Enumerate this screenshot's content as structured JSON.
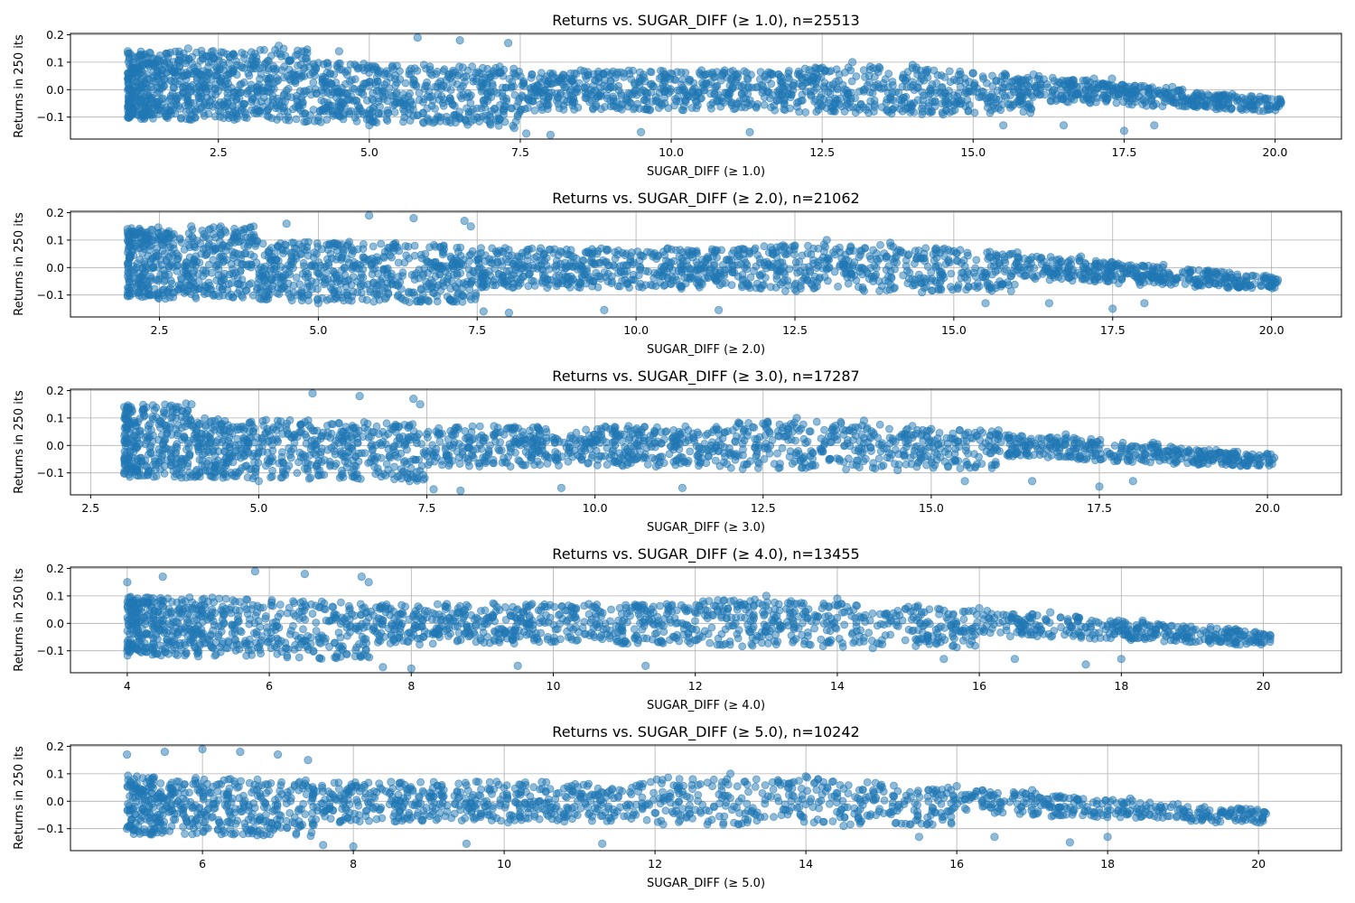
{
  "chart_data": [
    {
      "type": "scatter",
      "title": "Returns vs. SUGAR_DIFF (≥ 1.0), n=25513",
      "xlabel": "SUGAR_DIFF (≥ 1.0)",
      "ylabel": "Returns in 250 its",
      "xlim": [
        0.05,
        21.1
      ],
      "ylim": [
        -0.18,
        0.205
      ],
      "xticks": [
        2.5,
        5.0,
        7.5,
        10.0,
        12.5,
        15.0,
        17.5,
        20.0
      ],
      "xtick_labels": [
        "2.5",
        "5.0",
        "7.5",
        "10.0",
        "12.5",
        "15.0",
        "17.5",
        "20.0"
      ],
      "yticks": [
        -0.1,
        0.0,
        0.1,
        0.2
      ],
      "ytick_labels": [
        "−0.1",
        "0.0",
        "0.1",
        "0.2"
      ],
      "grid": true,
      "color": "#1f77b4",
      "series": [
        {
          "points": [
            [
              1.0,
              0.14
            ],
            [
              1.0,
              -0.1
            ],
            [
              2.0,
              0.15
            ],
            [
              3.5,
              0.16
            ],
            [
              4.5,
              0.14
            ],
            [
              5.0,
              -0.13
            ],
            [
              5.8,
              0.19
            ],
            [
              6.5,
              0.18
            ],
            [
              7.3,
              0.17
            ],
            [
              7.4,
              -0.14
            ],
            [
              7.6,
              -0.16
            ],
            [
              8.0,
              -0.165
            ],
            [
              8.5,
              0.07
            ],
            [
              9.5,
              -0.155
            ],
            [
              10.5,
              0.07
            ],
            [
              11.3,
              -0.155
            ],
            [
              12.5,
              0.08
            ],
            [
              13.0,
              0.1
            ],
            [
              14.0,
              0.09
            ],
            [
              14.5,
              -0.09
            ],
            [
              15.0,
              0.06
            ],
            [
              15.5,
              -0.13
            ],
            [
              16.0,
              0.055
            ],
            [
              16.5,
              -0.13
            ],
            [
              17.0,
              0.04
            ],
            [
              17.3,
              0.04
            ],
            [
              17.5,
              -0.15
            ],
            [
              18.0,
              -0.13
            ],
            [
              18.3,
              0.01
            ],
            [
              18.5,
              -0.04
            ],
            [
              19.0,
              -0.03
            ],
            [
              19.5,
              -0.05
            ],
            [
              20.1,
              -0.045
            ]
          ]
        }
      ]
    },
    {
      "type": "scatter",
      "title": "Returns vs. SUGAR_DIFF (≥ 2.0), n=21062",
      "xlabel": "SUGAR_DIFF (≥ 2.0)",
      "ylabel": "Returns in 250 its",
      "xlim": [
        1.1,
        21.1
      ],
      "ylim": [
        -0.18,
        0.205
      ],
      "xticks": [
        2.5,
        5.0,
        7.5,
        10.0,
        12.5,
        15.0,
        17.5,
        20.0
      ],
      "xtick_labels": [
        "2.5",
        "5.0",
        "7.5",
        "10.0",
        "12.5",
        "15.0",
        "17.5",
        "20.0"
      ],
      "yticks": [
        -0.1,
        0.0,
        0.1,
        0.2
      ],
      "ytick_labels": [
        "−0.1",
        "0.0",
        "0.1",
        "0.2"
      ],
      "grid": true,
      "color": "#1f77b4",
      "series": [
        {
          "points": [
            [
              2.0,
              0.14
            ],
            [
              2.0,
              -0.1
            ],
            [
              3.0,
              0.15
            ],
            [
              4.5,
              0.16
            ],
            [
              5.0,
              -0.13
            ],
            [
              5.8,
              0.19
            ],
            [
              6.5,
              0.18
            ],
            [
              7.3,
              0.17
            ],
            [
              7.4,
              0.15
            ],
            [
              7.6,
              -0.16
            ],
            [
              8.0,
              -0.165
            ],
            [
              8.5,
              0.07
            ],
            [
              9.5,
              -0.155
            ],
            [
              10.5,
              0.07
            ],
            [
              11.3,
              -0.155
            ],
            [
              12.5,
              0.08
            ],
            [
              13.0,
              0.1
            ],
            [
              14.0,
              0.09
            ],
            [
              14.5,
              -0.09
            ],
            [
              15.0,
              0.06
            ],
            [
              15.5,
              -0.13
            ],
            [
              16.0,
              0.055
            ],
            [
              16.5,
              -0.13
            ],
            [
              17.0,
              0.04
            ],
            [
              17.5,
              -0.15
            ],
            [
              18.0,
              -0.13
            ],
            [
              18.3,
              0.01
            ],
            [
              18.5,
              -0.04
            ],
            [
              19.0,
              -0.03
            ],
            [
              19.5,
              -0.05
            ],
            [
              20.1,
              -0.045
            ]
          ]
        }
      ]
    },
    {
      "type": "scatter",
      "title": "Returns vs. SUGAR_DIFF (≥ 3.0), n=17287",
      "xlabel": "SUGAR_DIFF (≥ 3.0)",
      "ylabel": "Returns in 250 its",
      "xlim": [
        2.2,
        21.1
      ],
      "ylim": [
        -0.18,
        0.205
      ],
      "xticks": [
        2.5,
        5.0,
        7.5,
        10.0,
        12.5,
        15.0,
        17.5,
        20.0
      ],
      "xtick_labels": [
        "2.5",
        "5.0",
        "7.5",
        "10.0",
        "12.5",
        "15.0",
        "17.5",
        "20.0"
      ],
      "yticks": [
        -0.1,
        0.0,
        0.1,
        0.2
      ],
      "ytick_labels": [
        "−0.1",
        "0.0",
        "0.1",
        "0.2"
      ],
      "grid": true,
      "color": "#1f77b4",
      "series": [
        {
          "points": [
            [
              3.0,
              0.14
            ],
            [
              3.0,
              -0.1
            ],
            [
              4.0,
              0.15
            ],
            [
              5.0,
              -0.13
            ],
            [
              5.8,
              0.19
            ],
            [
              6.5,
              0.18
            ],
            [
              7.3,
              0.17
            ],
            [
              7.4,
              0.15
            ],
            [
              7.6,
              -0.16
            ],
            [
              8.0,
              -0.165
            ],
            [
              8.5,
              0.07
            ],
            [
              9.5,
              -0.155
            ],
            [
              10.5,
              0.07
            ],
            [
              11.3,
              -0.155
            ],
            [
              12.5,
              0.08
            ],
            [
              13.0,
              0.1
            ],
            [
              14.0,
              0.09
            ],
            [
              14.5,
              -0.09
            ],
            [
              15.0,
              0.06
            ],
            [
              15.5,
              -0.13
            ],
            [
              16.0,
              0.055
            ],
            [
              16.5,
              -0.13
            ],
            [
              17.0,
              0.04
            ],
            [
              17.5,
              -0.15
            ],
            [
              18.0,
              -0.13
            ],
            [
              18.3,
              0.01
            ],
            [
              18.5,
              -0.04
            ],
            [
              19.0,
              -0.03
            ],
            [
              19.5,
              -0.05
            ],
            [
              20.1,
              -0.045
            ]
          ]
        }
      ]
    },
    {
      "type": "scatter",
      "title": "Returns vs. SUGAR_DIFF (≥ 4.0), n=13455",
      "xlabel": "SUGAR_DIFF (≥ 4.0)",
      "ylabel": "Returns in 250 its",
      "xlim": [
        3.2,
        21.1
      ],
      "ylim": [
        -0.18,
        0.205
      ],
      "xticks": [
        4,
        6,
        8,
        10,
        12,
        14,
        16,
        18,
        20
      ],
      "xtick_labels": [
        "4",
        "6",
        "8",
        "10",
        "12",
        "14",
        "16",
        "18",
        "20"
      ],
      "yticks": [
        -0.1,
        0.0,
        0.1,
        0.2
      ],
      "ytick_labels": [
        "−0.1",
        "0.0",
        "0.1",
        "0.2"
      ],
      "grid": true,
      "color": "#1f77b4",
      "series": [
        {
          "points": [
            [
              4.0,
              0.15
            ],
            [
              4.0,
              -0.1
            ],
            [
              4.5,
              0.17
            ],
            [
              5.0,
              -0.12
            ],
            [
              5.8,
              0.19
            ],
            [
              6.5,
              0.18
            ],
            [
              7.3,
              0.17
            ],
            [
              7.4,
              0.15
            ],
            [
              7.6,
              -0.16
            ],
            [
              8.0,
              -0.165
            ],
            [
              8.5,
              0.07
            ],
            [
              9.5,
              -0.155
            ],
            [
              10.5,
              0.07
            ],
            [
              11.3,
              -0.155
            ],
            [
              12.5,
              0.08
            ],
            [
              13.0,
              0.1
            ],
            [
              14.0,
              0.09
            ],
            [
              14.5,
              -0.09
            ],
            [
              15.0,
              0.06
            ],
            [
              15.5,
              -0.13
            ],
            [
              16.0,
              0.055
            ],
            [
              16.5,
              -0.13
            ],
            [
              17.0,
              0.04
            ],
            [
              17.5,
              -0.15
            ],
            [
              18.0,
              -0.13
            ],
            [
              18.3,
              0.01
            ],
            [
              18.5,
              -0.04
            ],
            [
              19.0,
              -0.03
            ],
            [
              19.5,
              -0.05
            ],
            [
              20.1,
              -0.045
            ]
          ]
        }
      ]
    },
    {
      "type": "scatter",
      "title": "Returns vs. SUGAR_DIFF (≥ 5.0), n=10242",
      "xlabel": "SUGAR_DIFF (≥ 5.0)",
      "ylabel": "Returns in 250 its",
      "xlim": [
        4.25,
        21.1
      ],
      "ylim": [
        -0.18,
        0.205
      ],
      "xticks": [
        6,
        8,
        10,
        12,
        14,
        16,
        18,
        20
      ],
      "xtick_labels": [
        "6",
        "8",
        "10",
        "12",
        "14",
        "16",
        "18",
        "20"
      ],
      "yticks": [
        -0.1,
        0.0,
        0.1,
        0.2
      ],
      "ytick_labels": [
        "−0.1",
        "0.0",
        "0.1",
        "0.2"
      ],
      "grid": true,
      "color": "#1f77b4",
      "series": [
        {
          "points": [
            [
              5.0,
              0.17
            ],
            [
              5.0,
              -0.1
            ],
            [
              5.5,
              0.18
            ],
            [
              6.0,
              0.19
            ],
            [
              6.5,
              0.18
            ],
            [
              7.0,
              0.17
            ],
            [
              7.4,
              0.15
            ],
            [
              7.6,
              -0.16
            ],
            [
              8.0,
              -0.165
            ],
            [
              8.5,
              0.07
            ],
            [
              9.5,
              -0.155
            ],
            [
              10.5,
              0.07
            ],
            [
              11.3,
              -0.155
            ],
            [
              12.5,
              0.08
            ],
            [
              13.0,
              0.1
            ],
            [
              14.0,
              0.09
            ],
            [
              14.5,
              -0.09
            ],
            [
              15.0,
              0.06
            ],
            [
              15.5,
              -0.13
            ],
            [
              16.0,
              0.055
            ],
            [
              16.5,
              -0.13
            ],
            [
              17.0,
              0.04
            ],
            [
              17.5,
              -0.15
            ],
            [
              18.0,
              -0.13
            ],
            [
              18.3,
              0.01
            ],
            [
              18.5,
              -0.04
            ],
            [
              19.0,
              -0.03
            ],
            [
              19.5,
              -0.05
            ],
            [
              20.1,
              -0.045
            ]
          ]
        }
      ]
    }
  ]
}
